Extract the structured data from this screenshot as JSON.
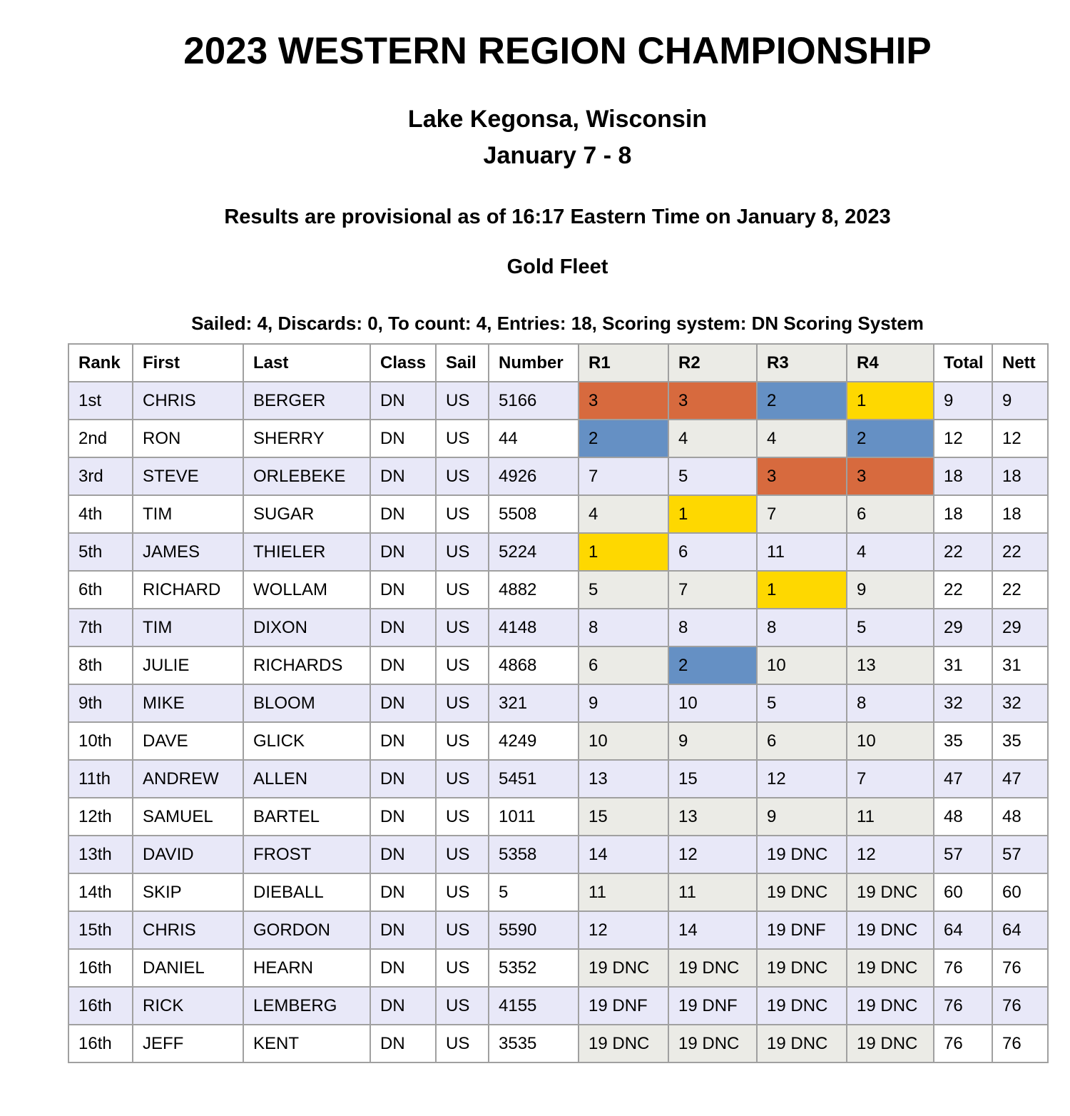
{
  "page": {
    "title": "2023 WESTERN REGION CHAMPIONSHIP",
    "location": "Lake Kegonsa, Wisconsin",
    "dates": "January 7 - 8",
    "provisional_note": "Results are provisional as of 16:17 Eastern Time on January 8, 2023",
    "fleet": "Gold Fleet",
    "series_summary": "Sailed: 4, Discards: 0, To count: 4, Entries: 18, Scoring system: DN Scoring System"
  },
  "colors": {
    "first_place_highlight": "#fed800",
    "second_place_highlight": "#6590c4",
    "third_place_highlight": "#d76a3e",
    "alt_row": "#e8e8f8",
    "race_cell": "#ebebe6",
    "table_border": "#a0a0a0"
  },
  "table": {
    "columns": [
      "Rank",
      "First",
      "Last",
      "Class",
      "Sail",
      "Number",
      "R1",
      "R2",
      "R3",
      "R4",
      "Total",
      "Nett"
    ],
    "rows": [
      {
        "rank": "1st",
        "first": "CHRIS",
        "last": "BERGER",
        "class": "DN",
        "sail": "US",
        "number": "5166",
        "races": [
          {
            "v": "3",
            "place": "3"
          },
          {
            "v": "3",
            "place": "3"
          },
          {
            "v": "2",
            "place": "2"
          },
          {
            "v": "1",
            "place": "1"
          }
        ],
        "total": "9",
        "nett": "9"
      },
      {
        "rank": "2nd",
        "first": "RON",
        "last": "SHERRY",
        "class": "DN",
        "sail": "US",
        "number": "44",
        "races": [
          {
            "v": "2",
            "place": "2"
          },
          {
            "v": "4"
          },
          {
            "v": "4"
          },
          {
            "v": "2",
            "place": "2"
          }
        ],
        "total": "12",
        "nett": "12"
      },
      {
        "rank": "3rd",
        "first": "STEVE",
        "last": "ORLEBEKE",
        "class": "DN",
        "sail": "US",
        "number": "4926",
        "races": [
          {
            "v": "7"
          },
          {
            "v": "5"
          },
          {
            "v": "3",
            "place": "3"
          },
          {
            "v": "3",
            "place": "3"
          }
        ],
        "total": "18",
        "nett": "18"
      },
      {
        "rank": "4th",
        "first": "TIM",
        "last": "SUGAR",
        "class": "DN",
        "sail": "US",
        "number": "5508",
        "races": [
          {
            "v": "4"
          },
          {
            "v": "1",
            "place": "1"
          },
          {
            "v": "7"
          },
          {
            "v": "6"
          }
        ],
        "total": "18",
        "nett": "18"
      },
      {
        "rank": "5th",
        "first": "JAMES",
        "last": "THIELER",
        "class": "DN",
        "sail": "US",
        "number": "5224",
        "races": [
          {
            "v": "1",
            "place": "1"
          },
          {
            "v": "6"
          },
          {
            "v": "11"
          },
          {
            "v": "4"
          }
        ],
        "total": "22",
        "nett": "22"
      },
      {
        "rank": "6th",
        "first": "RICHARD",
        "last": "WOLLAM",
        "class": "DN",
        "sail": "US",
        "number": "4882",
        "races": [
          {
            "v": "5"
          },
          {
            "v": "7"
          },
          {
            "v": "1",
            "place": "1"
          },
          {
            "v": "9"
          }
        ],
        "total": "22",
        "nett": "22"
      },
      {
        "rank": "7th",
        "first": "TIM",
        "last": "DIXON",
        "class": "DN",
        "sail": "US",
        "number": "4148",
        "races": [
          {
            "v": "8"
          },
          {
            "v": "8"
          },
          {
            "v": "8"
          },
          {
            "v": "5"
          }
        ],
        "total": "29",
        "nett": "29"
      },
      {
        "rank": "8th",
        "first": "JULIE",
        "last": "RICHARDS",
        "class": "DN",
        "sail": "US",
        "number": "4868",
        "races": [
          {
            "v": "6"
          },
          {
            "v": "2",
            "place": "2"
          },
          {
            "v": "10"
          },
          {
            "v": "13"
          }
        ],
        "total": "31",
        "nett": "31"
      },
      {
        "rank": "9th",
        "first": "MIKE",
        "last": "BLOOM",
        "class": "DN",
        "sail": "US",
        "number": "321",
        "races": [
          {
            "v": "9"
          },
          {
            "v": "10"
          },
          {
            "v": "5"
          },
          {
            "v": "8"
          }
        ],
        "total": "32",
        "nett": "32"
      },
      {
        "rank": "10th",
        "first": "DAVE",
        "last": "GLICK",
        "class": "DN",
        "sail": "US",
        "number": "4249",
        "races": [
          {
            "v": "10"
          },
          {
            "v": "9"
          },
          {
            "v": "6"
          },
          {
            "v": "10"
          }
        ],
        "total": "35",
        "nett": "35"
      },
      {
        "rank": "11th",
        "first": "ANDREW",
        "last": "ALLEN",
        "class": "DN",
        "sail": "US",
        "number": "5451",
        "races": [
          {
            "v": "13"
          },
          {
            "v": "15"
          },
          {
            "v": "12"
          },
          {
            "v": "7"
          }
        ],
        "total": "47",
        "nett": "47"
      },
      {
        "rank": "12th",
        "first": "SAMUEL",
        "last": "BARTEL",
        "class": "DN",
        "sail": "US",
        "number": "1011",
        "races": [
          {
            "v": "15"
          },
          {
            "v": "13"
          },
          {
            "v": "9"
          },
          {
            "v": "11"
          }
        ],
        "total": "48",
        "nett": "48"
      },
      {
        "rank": "13th",
        "first": "DAVID",
        "last": "FROST",
        "class": "DN",
        "sail": "US",
        "number": "5358",
        "races": [
          {
            "v": "14"
          },
          {
            "v": "12"
          },
          {
            "v": "19 DNC"
          },
          {
            "v": "12"
          }
        ],
        "total": "57",
        "nett": "57"
      },
      {
        "rank": "14th",
        "first": "SKIP",
        "last": "DIEBALL",
        "class": "DN",
        "sail": "US",
        "number": "5",
        "races": [
          {
            "v": "11"
          },
          {
            "v": "11"
          },
          {
            "v": "19 DNC"
          },
          {
            "v": "19 DNC"
          }
        ],
        "total": "60",
        "nett": "60"
      },
      {
        "rank": "15th",
        "first": "CHRIS",
        "last": "GORDON",
        "class": "DN",
        "sail": "US",
        "number": "5590",
        "races": [
          {
            "v": "12"
          },
          {
            "v": "14"
          },
          {
            "v": "19 DNF"
          },
          {
            "v": "19 DNC"
          }
        ],
        "total": "64",
        "nett": "64"
      },
      {
        "rank": "16th",
        "first": "DANIEL",
        "last": "HEARN",
        "class": "DN",
        "sail": "US",
        "number": "5352",
        "races": [
          {
            "v": "19 DNC"
          },
          {
            "v": "19 DNC"
          },
          {
            "v": "19 DNC"
          },
          {
            "v": "19 DNC"
          }
        ],
        "total": "76",
        "nett": "76"
      },
      {
        "rank": "16th",
        "first": "RICK",
        "last": "LEMBERG",
        "class": "DN",
        "sail": "US",
        "number": "4155",
        "races": [
          {
            "v": "19 DNF"
          },
          {
            "v": "19 DNF"
          },
          {
            "v": "19 DNC"
          },
          {
            "v": "19 DNC"
          }
        ],
        "total": "76",
        "nett": "76"
      },
      {
        "rank": "16th",
        "first": "JEFF",
        "last": "KENT",
        "class": "DN",
        "sail": "US",
        "number": "3535",
        "races": [
          {
            "v": "19 DNC"
          },
          {
            "v": "19 DNC"
          },
          {
            "v": "19 DNC"
          },
          {
            "v": "19 DNC"
          }
        ],
        "total": "76",
        "nett": "76"
      }
    ]
  }
}
